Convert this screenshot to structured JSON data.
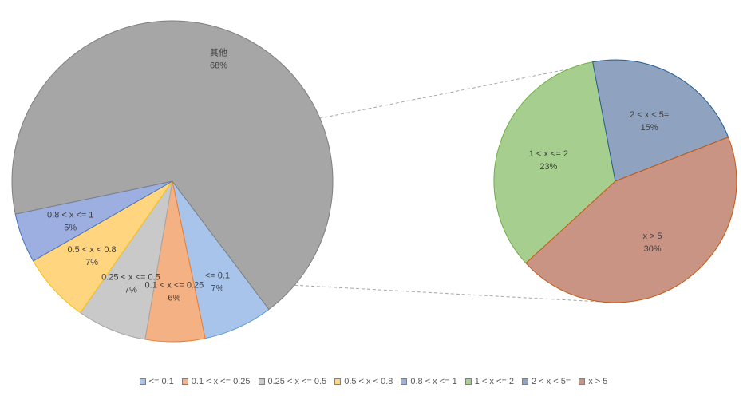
{
  "chart_data": {
    "type": "pie",
    "subtype": "pie-of-pie",
    "title": "",
    "categories": [
      "<= 0.1",
      "0.1 < x <= 0.25",
      "0.25 < x <= 0.5",
      "0.5 < x < 0.8",
      "0.8 < x <= 1",
      "1 < x <= 2",
      "2 < x < 5=",
      "x > 5"
    ],
    "main_pie": [
      {
        "label": "<= 0.1",
        "value": 7,
        "percent_label": "7%",
        "color": "#a9c4eb",
        "stroke": "#5b9bd5"
      },
      {
        "label": "0.1 < x <= 0.25",
        "value": 6,
        "percent_label": "6%",
        "color": "#f4b183",
        "stroke": "#ed7d31"
      },
      {
        "label": "0.25 < x <= 0.5",
        "value": 7,
        "percent_label": "7%",
        "color": "#c9c9c9",
        "stroke": "#a5a5a5"
      },
      {
        "label": "0.5 < x < 0.8",
        "value": 7,
        "percent_label": "7%",
        "color": "#ffd580",
        "stroke": "#ffc000"
      },
      {
        "label": "0.8 < x <= 1",
        "value": 5,
        "percent_label": "5%",
        "color": "#9daee0",
        "stroke": "#4472c4"
      },
      {
        "label": "其他",
        "value": 68,
        "percent_label": "68%",
        "color": "#a6a6a6",
        "stroke": "#7f7f7f"
      }
    ],
    "secondary_pie": [
      {
        "label": "1 < x <= 2",
        "value": 23,
        "percent_label": "23%",
        "color": "#a6cf8f",
        "stroke": "#70ad47"
      },
      {
        "label": "2 < x < 5=",
        "value": 15,
        "percent_label": "15%",
        "color": "#8fa2bf",
        "stroke": "#255e91"
      },
      {
        "label": "x > 5",
        "value": 30,
        "percent_label": "30%",
        "color": "#c99484",
        "stroke": "#c55a11"
      }
    ],
    "legend": {
      "position": "bottom",
      "entries": [
        {
          "label": "<= 0.1",
          "color": "#a9c4eb"
        },
        {
          "label": "0.1 < x <= 0.25",
          "color": "#f4b183"
        },
        {
          "label": "0.25 < x <= 0.5",
          "color": "#c9c9c9"
        },
        {
          "label": "0.5 < x < 0.8",
          "color": "#ffd580"
        },
        {
          "label": "0.8 < x <= 1",
          "color": "#9daee0"
        },
        {
          "label": "1 < x <= 2",
          "color": "#a6cf8f"
        },
        {
          "label": "2 < x < 5=",
          "color": "#8fa2bf"
        },
        {
          "label": "x > 5",
          "color": "#c99484"
        }
      ]
    }
  }
}
